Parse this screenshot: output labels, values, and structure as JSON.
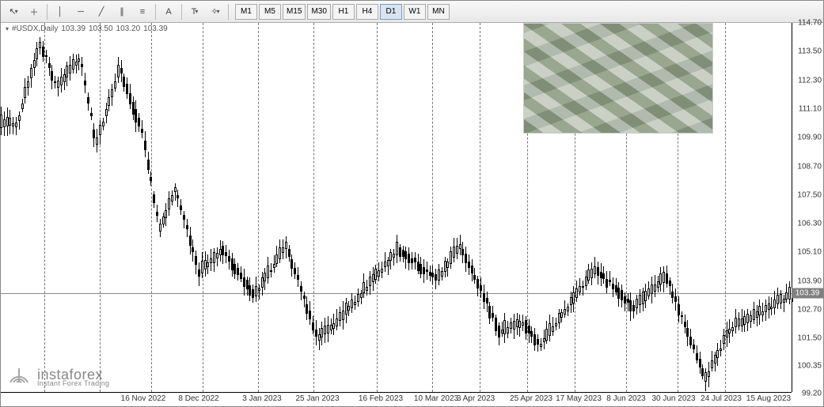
{
  "toolbar": {
    "tools": [
      {
        "name": "cursor-icon",
        "glyph": "↖"
      },
      {
        "name": "crosshair-icon",
        "glyph": "＋"
      },
      {
        "sep": true
      },
      {
        "name": "vertical-line-icon",
        "glyph": "│"
      },
      {
        "name": "horizontal-line-icon",
        "glyph": "─"
      },
      {
        "name": "trendline-icon",
        "glyph": "╱"
      },
      {
        "name": "channel-icon",
        "glyph": "∥"
      },
      {
        "name": "fibonacci-icon",
        "glyph": "≡"
      },
      {
        "sep": true
      },
      {
        "name": "text-icon",
        "glyph": "A"
      },
      {
        "sep": true
      },
      {
        "name": "label-icon",
        "glyph": "T"
      },
      {
        "name": "shapes-icon",
        "glyph": "✧"
      }
    ],
    "timeframes": [
      "M1",
      "M5",
      "M15",
      "M30",
      "H1",
      "H4",
      "D1",
      "W1",
      "MN"
    ],
    "active_timeframe": "D1"
  },
  "chart": {
    "symbol_label": "#USDX,Daily",
    "ohlc": [
      "103.39",
      "103.50",
      "103.20",
      "103.39"
    ],
    "last_price": "103.39",
    "y_axis": {
      "min": 99.2,
      "max": 114.7,
      "ticks": [
        114.7,
        113.5,
        112.3,
        111.1,
        109.9,
        108.7,
        107.5,
        106.3,
        105.1,
        103.9,
        102.7,
        101.5,
        100.35,
        99.2
      ],
      "label_color": "#333333"
    },
    "x_axis": {
      "labels": [
        {
          "t": 0.18,
          "text": "16 Nov 2022"
        },
        {
          "t": 0.25,
          "text": "8 Dec 2022"
        },
        {
          "t": 0.33,
          "text": "3 Jan 2023"
        },
        {
          "t": 0.4,
          "text": "25 Jan 2023"
        },
        {
          "t": 0.48,
          "text": "16 Feb 2023"
        },
        {
          "t": 0.55,
          "text": "10 Mar 2023"
        },
        {
          "t": 0.6,
          "text": "3 Apr 2023"
        },
        {
          "t": 0.67,
          "text": "25 Apr 2023"
        },
        {
          "t": 0.73,
          "text": "17 May 2023"
        },
        {
          "t": 0.79,
          "text": "8 Jun 2023"
        },
        {
          "t": 0.85,
          "text": "30 Jun 2023"
        },
        {
          "t": 0.91,
          "text": "24 Jul 2023"
        },
        {
          "t": 0.97,
          "text": "15 Aug 2023"
        }
      ],
      "vlines": [
        0.055,
        0.125,
        0.19,
        0.255,
        0.325,
        0.395,
        0.475,
        0.545,
        0.605,
        0.665,
        0.725,
        0.79,
        0.855,
        0.915
      ]
    },
    "colors": {
      "bg": "#ffffff",
      "axis": "#000000",
      "grid_dash": "#777777",
      "last_price_bg": "#808080",
      "last_price_fg": "#ffffff",
      "candle_border": "#000000",
      "candle_up_fill": "#ffffff",
      "candle_down_fill": "#000000"
    },
    "series": {
      "n_candles": 265,
      "segments": [
        {
          "from": 0.0,
          "to": 0.02,
          "price": 110.5,
          "up": true
        },
        {
          "from": 0.02,
          "to": 0.05,
          "price": 113.9,
          "up": true
        },
        {
          "from": 0.05,
          "to": 0.07,
          "price": 112.0,
          "up": false
        },
        {
          "from": 0.07,
          "to": 0.1,
          "price": 113.3,
          "up": true
        },
        {
          "from": 0.1,
          "to": 0.12,
          "price": 109.6,
          "up": false
        },
        {
          "from": 0.12,
          "to": 0.15,
          "price": 112.8,
          "up": true
        },
        {
          "from": 0.15,
          "to": 0.18,
          "price": 110.0,
          "up": false
        },
        {
          "from": 0.18,
          "to": 0.2,
          "price": 106.0,
          "up": false
        },
        {
          "from": 0.2,
          "to": 0.22,
          "price": 107.8,
          "up": true
        },
        {
          "from": 0.22,
          "to": 0.25,
          "price": 104.3,
          "up": false
        },
        {
          "from": 0.25,
          "to": 0.28,
          "price": 105.2,
          "up": true
        },
        {
          "from": 0.28,
          "to": 0.32,
          "price": 103.3,
          "up": false
        },
        {
          "from": 0.32,
          "to": 0.36,
          "price": 105.4,
          "up": true
        },
        {
          "from": 0.36,
          "to": 0.4,
          "price": 101.5,
          "up": false
        },
        {
          "from": 0.4,
          "to": 0.43,
          "price": 102.4,
          "up": true
        },
        {
          "from": 0.43,
          "to": 0.5,
          "price": 105.2,
          "up": true
        },
        {
          "from": 0.5,
          "to": 0.55,
          "price": 104.0,
          "up": false
        },
        {
          "from": 0.55,
          "to": 0.58,
          "price": 105.4,
          "up": true
        },
        {
          "from": 0.58,
          "to": 0.63,
          "price": 101.8,
          "up": false
        },
        {
          "from": 0.63,
          "to": 0.66,
          "price": 102.2,
          "up": true
        },
        {
          "from": 0.66,
          "to": 0.68,
          "price": 101.2,
          "up": false
        },
        {
          "from": 0.68,
          "to": 0.75,
          "price": 104.4,
          "up": true
        },
        {
          "from": 0.75,
          "to": 0.8,
          "price": 102.8,
          "up": false
        },
        {
          "from": 0.8,
          "to": 0.84,
          "price": 104.1,
          "up": true
        },
        {
          "from": 0.84,
          "to": 0.89,
          "price": 99.8,
          "up": false
        },
        {
          "from": 0.89,
          "to": 0.92,
          "price": 101.9,
          "up": true
        },
        {
          "from": 0.92,
          "to": 1.0,
          "price": 103.4,
          "up": true
        }
      ],
      "wick_range": 0.45,
      "body_range": 0.28
    }
  },
  "brand": {
    "name": "instaforex",
    "tagline": "Instant Forex Trading"
  }
}
